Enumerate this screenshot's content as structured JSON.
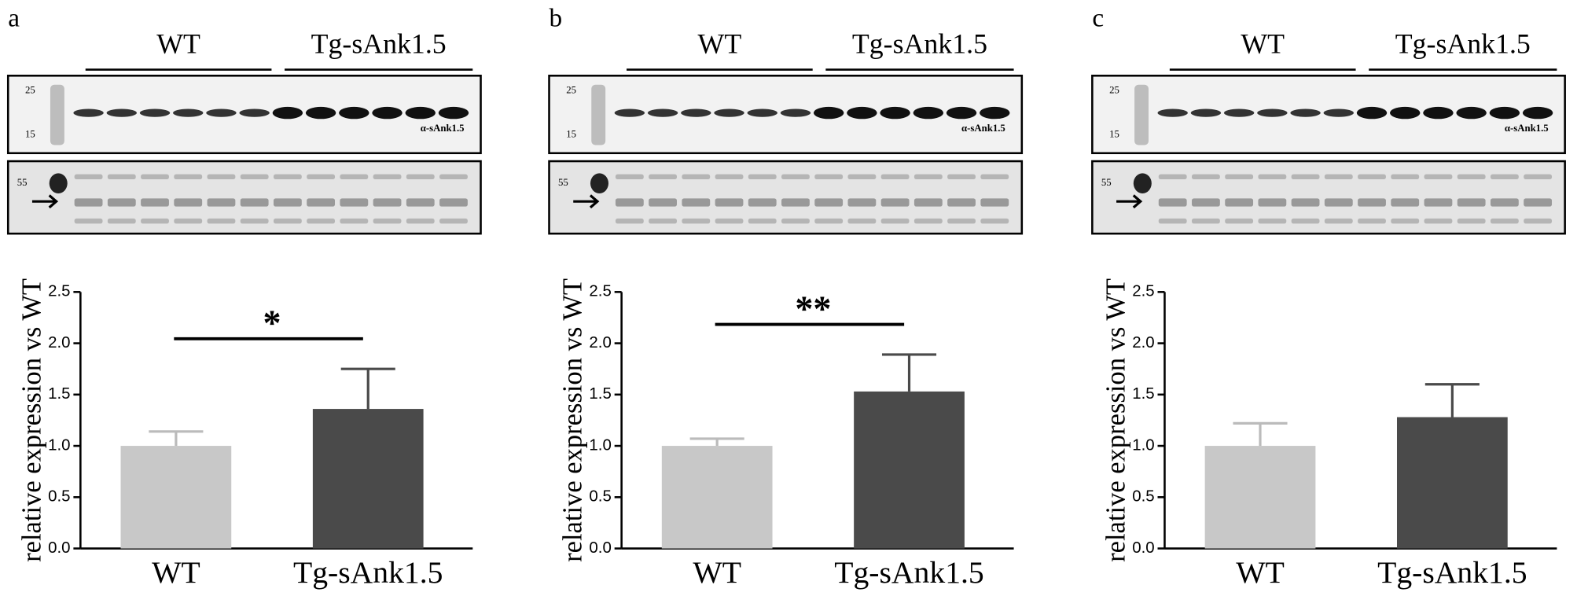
{
  "chart_data": [
    {
      "type": "bar",
      "panel_label": "a",
      "blot": {
        "groups": [
          "WT",
          "Tg-sAnk1.5"
        ],
        "markers": [
          "25",
          "15"
        ],
        "antibody": "α-sAnk1.5",
        "loading_marker": "55"
      },
      "y_label": "relative expression vs WT",
      "categories": [
        "WT",
        "Tg-sAnk1.5"
      ],
      "values": [
        1.0,
        1.36
      ],
      "errors": [
        0.14,
        0.39
      ],
      "colors": [
        "#c8c8c8",
        "#4a4a4a"
      ],
      "annotation": "*",
      "ylim": [
        0,
        2.5
      ],
      "yticks": [
        {
          "value": 0,
          "label": "0.0"
        },
        0.5,
        {
          "value": 1,
          "label": "1.0"
        },
        1.5,
        {
          "value": 2,
          "label": "2.0"
        },
        2.5
      ]
    },
    {
      "type": "bar",
      "panel_label": "b",
      "blot": {
        "groups": [
          "WT",
          "Tg-sAnk1.5"
        ],
        "markers": [
          "25",
          "15"
        ],
        "antibody": "α-sAnk1.5",
        "loading_marker": "55"
      },
      "y_label": "relative expression vs WT",
      "categories": [
        "WT",
        "Tg-sAnk1.5"
      ],
      "values": [
        1.0,
        1.53
      ],
      "errors": [
        0.07,
        0.36
      ],
      "colors": [
        "#c8c8c8",
        "#4a4a4a"
      ],
      "annotation": "**",
      "ylim": [
        0,
        2.5
      ],
      "yticks": [
        {
          "value": 0,
          "label": "0.0"
        },
        0.5,
        {
          "value": 1,
          "label": "1.0"
        },
        1.5,
        {
          "value": 2,
          "label": "2.0"
        },
        2.5
      ]
    },
    {
      "type": "bar",
      "panel_label": "c",
      "blot": {
        "groups": [
          "WT",
          "Tg-sAnk1.5"
        ],
        "markers": [
          "25",
          "15"
        ],
        "antibody": "α-sAnk1.5",
        "loading_marker": "55"
      },
      "y_label": "relative expression vs WT",
      "categories": [
        "WT",
        "Tg-sAnk1.5"
      ],
      "values": [
        1.0,
        1.28
      ],
      "errors": [
        0.22,
        0.32
      ],
      "colors": [
        "#c8c8c8",
        "#4a4a4a"
      ],
      "ylim": [
        0,
        2.5
      ],
      "yticks": [
        {
          "value": 0,
          "label": "0.0"
        },
        0.5,
        {
          "value": 1,
          "label": "1.0"
        },
        1.5,
        {
          "value": 2,
          "label": "2.0"
        },
        2.5
      ]
    }
  ]
}
